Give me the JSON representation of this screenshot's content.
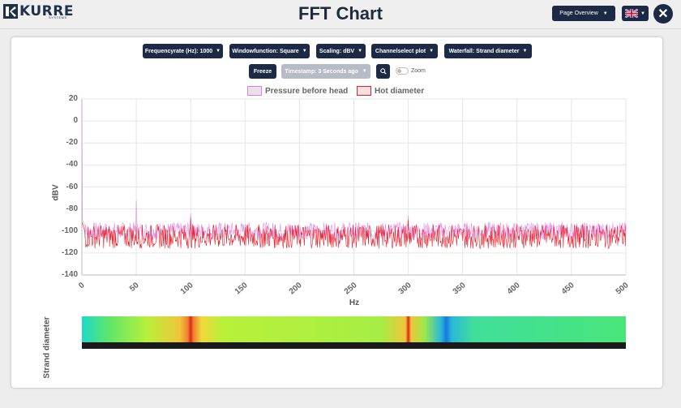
{
  "header": {
    "logo_text": "KURRE",
    "logo_sub": "SYSTEMS",
    "title": "FFT Chart",
    "page_overview_label": "Page Overview",
    "close_symbol": "✕"
  },
  "controls": {
    "frequencyrate": "Frequencyrate (Hz): 1000",
    "windowfunction": "Windowfunction: Square",
    "scaling": "Scaling: dBV",
    "channelselect": "Channelselect plot",
    "waterfall": "Waterfall: Strand diameter",
    "freeze": "Freeze",
    "timestamp": "Timestamp: 3 Seconds ago",
    "zoom": "Zoom"
  },
  "icons": {
    "logo": "kurre-logo-icon",
    "caret": "caret-down-icon",
    "search": "magnifier-icon",
    "flag": "uk-flag-icon",
    "close": "close-icon"
  },
  "colors": {
    "accent": "#1c2a45",
    "series_pressure": "#e37de6",
    "series_hot": "#e8202a"
  },
  "chart_data": {
    "type": "line",
    "xlabel": "Hz",
    "ylabel": "dBV",
    "xlim": [
      0,
      500
    ],
    "ylim": [
      -140,
      20
    ],
    "xticks": [
      "0",
      "50",
      "100",
      "150",
      "200",
      "250",
      "300",
      "350",
      "400",
      "450",
      "500"
    ],
    "yticks": [
      "20",
      "0",
      "-20",
      "-40",
      "-60",
      "-80",
      "-100",
      "-120",
      "-140"
    ],
    "grid": true,
    "legend_placement": "top-center",
    "series": [
      {
        "name": "Pressure before head",
        "color": "#e37de6",
        "noise_floor": -100,
        "noise_range": [
          -108,
          -92
        ],
        "peaks": [
          {
            "x": 0,
            "y": 20
          },
          {
            "x": 50,
            "y": -72
          },
          {
            "x": 100,
            "y": -84
          },
          {
            "x": 300,
            "y": -86
          }
        ]
      },
      {
        "name": "Hot diameter",
        "color": "#e8202a",
        "noise_floor": -104,
        "noise_range": [
          -116,
          -94
        ],
        "peaks": [
          {
            "x": 100,
            "y": -88
          },
          {
            "x": 300,
            "y": -90
          }
        ]
      }
    ]
  },
  "waterfall": {
    "ylabel": "Strand diameter",
    "hot_lines_hz": [
      100,
      300
    ],
    "cool_line_hz": 335
  }
}
